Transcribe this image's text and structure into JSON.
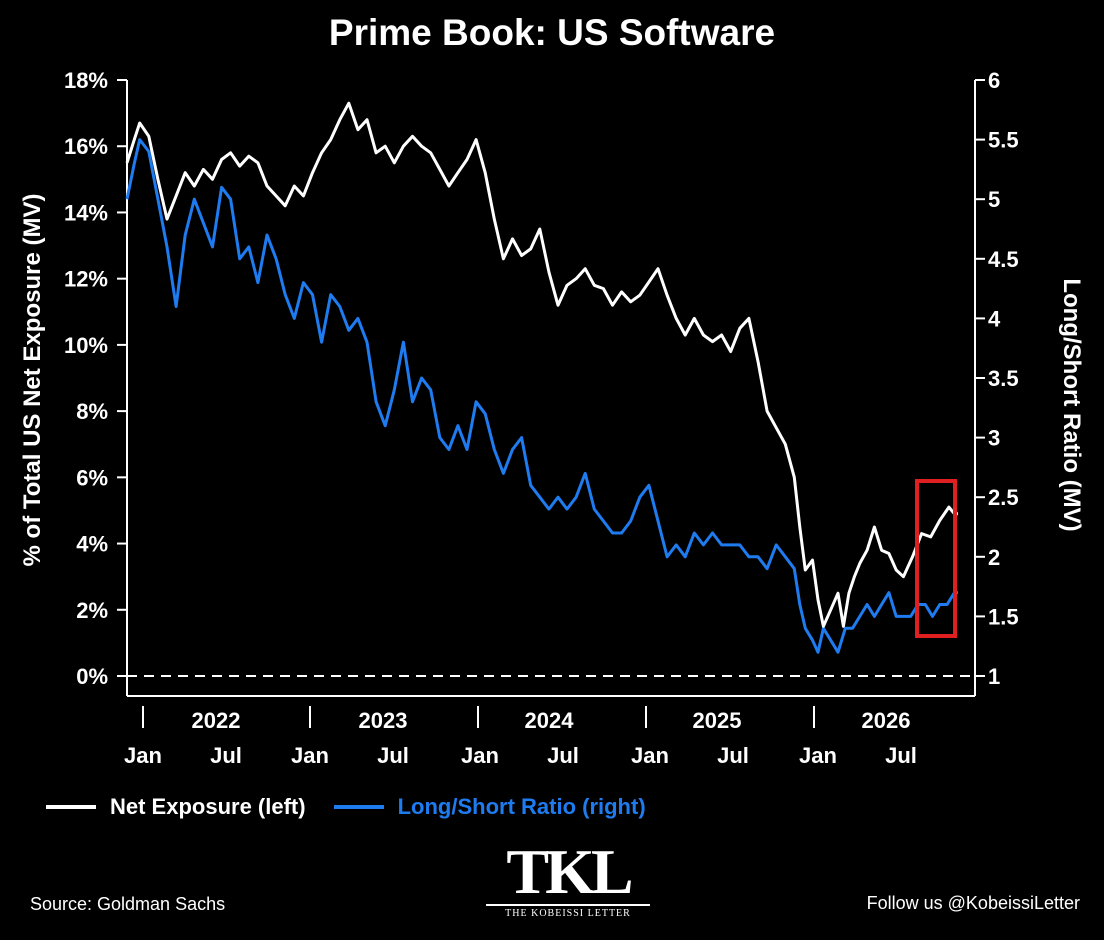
{
  "title": "Prime Book: US Software",
  "source": "Source: Goldman Sachs",
  "follow": "Follow us @KobeissiLetter",
  "logo": {
    "mark": "TKL",
    "subtitle": "THE KOBEISSI LETTER"
  },
  "legend": [
    {
      "label": "Net Exposure (left)",
      "color": "#ffffff"
    },
    {
      "label": "Long/Short Ratio (right)",
      "color": "#1e7cf0"
    }
  ],
  "chart_data": {
    "type": "line",
    "title": "Prime Book: US Software",
    "ylabel_left": "% of Total US Net Exposure (MV)",
    "ylabel_right": "Long/Short Ratio (MV)",
    "y_left_ticks": [
      "0%",
      "2%",
      "4%",
      "6%",
      "8%",
      "10%",
      "12%",
      "14%",
      "16%",
      "18%"
    ],
    "y_left_range": [
      0,
      18
    ],
    "y_right_ticks": [
      "1",
      "1.5",
      "2",
      "2.5",
      "3",
      "3.5",
      "4",
      "4.5",
      "5",
      "5.5",
      "6"
    ],
    "y_right_range": [
      1,
      6
    ],
    "x_range": [
      2021.93,
      2026.5
    ],
    "year_labels": [
      "2022",
      "2023",
      "2024",
      "2025",
      "2026"
    ],
    "month_labels": [
      "Jan",
      "Jul",
      "Jan",
      "Jul",
      "Jan",
      "Jul",
      "Jan",
      "Jul",
      "Jan",
      "Jul"
    ],
    "zero_line": "dashed",
    "highlight_box": {
      "x_range": [
        2026.4,
        2026.5
      ],
      "color": "#e02020"
    },
    "series": [
      {
        "name": "Net Exposure (left)",
        "axis": "left",
        "color": "#ffffff",
        "points": [
          [
            2021.93,
            15.5
          ],
          [
            2021.97,
            16.2
          ],
          [
            2022.0,
            16.7
          ],
          [
            2022.05,
            16.3
          ],
          [
            2022.1,
            15.0
          ],
          [
            2022.15,
            13.8
          ],
          [
            2022.2,
            14.5
          ],
          [
            2022.25,
            15.2
          ],
          [
            2022.3,
            14.8
          ],
          [
            2022.35,
            15.3
          ],
          [
            2022.4,
            15.0
          ],
          [
            2022.45,
            15.6
          ],
          [
            2022.5,
            15.8
          ],
          [
            2022.55,
            15.4
          ],
          [
            2022.6,
            15.7
          ],
          [
            2022.65,
            15.5
          ],
          [
            2022.7,
            14.8
          ],
          [
            2022.75,
            14.5
          ],
          [
            2022.8,
            14.2
          ],
          [
            2022.85,
            14.8
          ],
          [
            2022.9,
            14.5
          ],
          [
            2022.95,
            15.2
          ],
          [
            2023.0,
            15.8
          ],
          [
            2023.05,
            16.2
          ],
          [
            2023.1,
            16.8
          ],
          [
            2023.15,
            17.3
          ],
          [
            2023.2,
            16.5
          ],
          [
            2023.25,
            16.8
          ],
          [
            2023.3,
            15.8
          ],
          [
            2023.35,
            16.0
          ],
          [
            2023.4,
            15.5
          ],
          [
            2023.45,
            16.0
          ],
          [
            2023.5,
            16.3
          ],
          [
            2023.55,
            16.0
          ],
          [
            2023.6,
            15.8
          ],
          [
            2023.65,
            15.3
          ],
          [
            2023.7,
            14.8
          ],
          [
            2023.75,
            15.2
          ],
          [
            2023.8,
            15.6
          ],
          [
            2023.85,
            16.2
          ],
          [
            2023.9,
            15.2
          ],
          [
            2023.95,
            13.8
          ],
          [
            2024.0,
            12.6
          ],
          [
            2024.05,
            13.2
          ],
          [
            2024.1,
            12.7
          ],
          [
            2024.15,
            12.9
          ],
          [
            2024.2,
            13.5
          ],
          [
            2024.25,
            12.2
          ],
          [
            2024.3,
            11.2
          ],
          [
            2024.35,
            11.8
          ],
          [
            2024.4,
            12.0
          ],
          [
            2024.45,
            12.3
          ],
          [
            2024.5,
            11.8
          ],
          [
            2024.55,
            11.7
          ],
          [
            2024.6,
            11.2
          ],
          [
            2024.65,
            11.6
          ],
          [
            2024.7,
            11.3
          ],
          [
            2024.75,
            11.5
          ],
          [
            2024.8,
            11.9
          ],
          [
            2024.85,
            12.3
          ],
          [
            2024.9,
            11.5
          ],
          [
            2024.95,
            10.8
          ],
          [
            2025.0,
            10.3
          ],
          [
            2025.05,
            10.8
          ],
          [
            2025.1,
            10.3
          ],
          [
            2025.15,
            10.1
          ],
          [
            2025.2,
            10.3
          ],
          [
            2025.25,
            9.8
          ],
          [
            2025.3,
            10.5
          ],
          [
            2025.35,
            10.8
          ],
          [
            2025.4,
            9.5
          ],
          [
            2025.45,
            8.0
          ],
          [
            2025.5,
            7.5
          ],
          [
            2025.55,
            7.0
          ],
          [
            2025.6,
            6.0
          ],
          [
            2025.63,
            4.5
          ],
          [
            2025.66,
            3.2
          ],
          [
            2025.7,
            3.5
          ],
          [
            2025.73,
            2.3
          ],
          [
            2025.76,
            1.5
          ],
          [
            2025.8,
            2.0
          ],
          [
            2025.84,
            2.5
          ],
          [
            2025.87,
            1.5
          ],
          [
            2025.9,
            2.5
          ],
          [
            2025.93,
            3.0
          ],
          [
            2025.96,
            3.4
          ],
          [
            2026.0,
            3.8
          ],
          [
            2026.04,
            4.5
          ],
          [
            2026.08,
            3.8
          ],
          [
            2026.12,
            3.7
          ],
          [
            2026.16,
            3.2
          ],
          [
            2026.2,
            3.0
          ],
          [
            2026.25,
            3.6
          ],
          [
            2026.3,
            4.3
          ],
          [
            2026.35,
            4.2
          ],
          [
            2026.4,
            4.7
          ],
          [
            2026.45,
            5.1
          ],
          [
            2026.48,
            4.9
          ],
          [
            2026.5,
            4.9
          ]
        ]
      },
      {
        "name": "Long/Short Ratio (right)",
        "axis": "right",
        "color": "#1e7cf0",
        "points": [
          [
            2021.93,
            5.0
          ],
          [
            2021.97,
            5.3
          ],
          [
            2022.0,
            5.5
          ],
          [
            2022.05,
            5.4
          ],
          [
            2022.1,
            5.0
          ],
          [
            2022.15,
            4.6
          ],
          [
            2022.2,
            4.1
          ],
          [
            2022.25,
            4.7
          ],
          [
            2022.3,
            5.0
          ],
          [
            2022.35,
            4.8
          ],
          [
            2022.4,
            4.6
          ],
          [
            2022.45,
            5.1
          ],
          [
            2022.5,
            5.0
          ],
          [
            2022.55,
            4.5
          ],
          [
            2022.6,
            4.6
          ],
          [
            2022.65,
            4.3
          ],
          [
            2022.7,
            4.7
          ],
          [
            2022.75,
            4.5
          ],
          [
            2022.8,
            4.2
          ],
          [
            2022.85,
            4.0
          ],
          [
            2022.9,
            4.3
          ],
          [
            2022.95,
            4.2
          ],
          [
            2023.0,
            3.8
          ],
          [
            2023.05,
            4.2
          ],
          [
            2023.1,
            4.1
          ],
          [
            2023.15,
            3.9
          ],
          [
            2023.2,
            4.0
          ],
          [
            2023.25,
            3.8
          ],
          [
            2023.3,
            3.3
          ],
          [
            2023.35,
            3.1
          ],
          [
            2023.4,
            3.4
          ],
          [
            2023.45,
            3.8
          ],
          [
            2023.5,
            3.3
          ],
          [
            2023.55,
            3.5
          ],
          [
            2023.6,
            3.4
          ],
          [
            2023.65,
            3.0
          ],
          [
            2023.7,
            2.9
          ],
          [
            2023.75,
            3.1
          ],
          [
            2023.8,
            2.9
          ],
          [
            2023.85,
            3.3
          ],
          [
            2023.9,
            3.2
          ],
          [
            2023.95,
            2.9
          ],
          [
            2024.0,
            2.7
          ],
          [
            2024.05,
            2.9
          ],
          [
            2024.1,
            3.0
          ],
          [
            2024.15,
            2.6
          ],
          [
            2024.2,
            2.5
          ],
          [
            2024.25,
            2.4
          ],
          [
            2024.3,
            2.5
          ],
          [
            2024.35,
            2.4
          ],
          [
            2024.4,
            2.5
          ],
          [
            2024.45,
            2.7
          ],
          [
            2024.5,
            2.4
          ],
          [
            2024.55,
            2.3
          ],
          [
            2024.6,
            2.2
          ],
          [
            2024.65,
            2.2
          ],
          [
            2024.7,
            2.3
          ],
          [
            2024.75,
            2.5
          ],
          [
            2024.8,
            2.6
          ],
          [
            2024.85,
            2.3
          ],
          [
            2024.9,
            2.0
          ],
          [
            2024.95,
            2.1
          ],
          [
            2025.0,
            2.0
          ],
          [
            2025.05,
            2.2
          ],
          [
            2025.1,
            2.1
          ],
          [
            2025.15,
            2.2
          ],
          [
            2025.2,
            2.1
          ],
          [
            2025.25,
            2.1
          ],
          [
            2025.3,
            2.1
          ],
          [
            2025.35,
            2.0
          ],
          [
            2025.4,
            2.0
          ],
          [
            2025.45,
            1.9
          ],
          [
            2025.5,
            2.1
          ],
          [
            2025.55,
            2.0
          ],
          [
            2025.6,
            1.9
          ],
          [
            2025.63,
            1.6
          ],
          [
            2025.66,
            1.4
          ],
          [
            2025.7,
            1.3
          ],
          [
            2025.73,
            1.2
          ],
          [
            2025.76,
            1.4
          ],
          [
            2025.8,
            1.3
          ],
          [
            2025.84,
            1.2
          ],
          [
            2025.88,
            1.4
          ],
          [
            2025.92,
            1.4
          ],
          [
            2025.96,
            1.5
          ],
          [
            2026.0,
            1.6
          ],
          [
            2026.04,
            1.5
          ],
          [
            2026.08,
            1.6
          ],
          [
            2026.12,
            1.7
          ],
          [
            2026.16,
            1.5
          ],
          [
            2026.2,
            1.5
          ],
          [
            2026.24,
            1.5
          ],
          [
            2026.28,
            1.6
          ],
          [
            2026.32,
            1.6
          ],
          [
            2026.36,
            1.5
          ],
          [
            2026.4,
            1.6
          ],
          [
            2026.44,
            1.6
          ],
          [
            2026.48,
            1.7
          ],
          [
            2026.5,
            1.7
          ]
        ]
      }
    ]
  }
}
